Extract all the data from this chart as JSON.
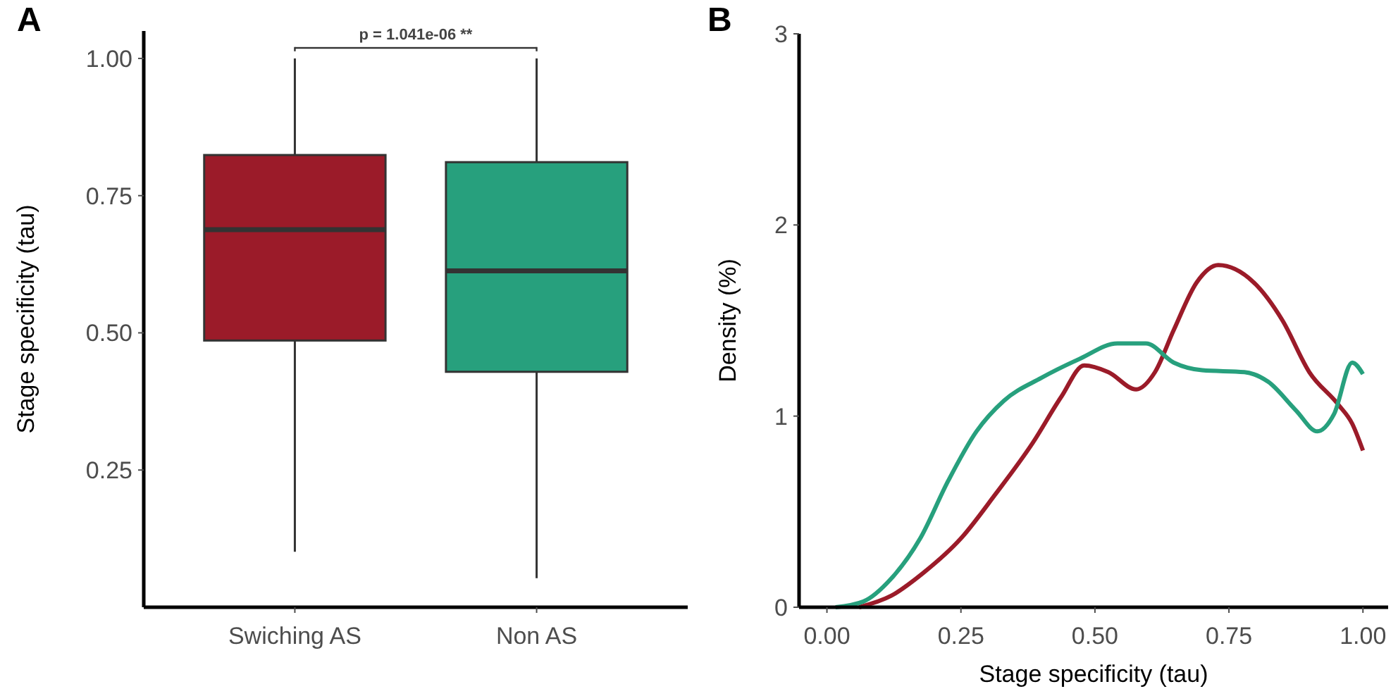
{
  "chart_data": [
    {
      "type": "box",
      "title": "A",
      "categories": [
        "Swiching AS",
        "Non AS"
      ],
      "ylabel": "Stage specificity (tau)",
      "ylim": [
        0,
        1.05
      ],
      "yticks": [
        {
          "value": 0.25,
          "label": "0.25"
        },
        {
          "value": 0.5,
          "label": "0.50"
        },
        {
          "value": 0.75,
          "label": "0.75"
        },
        {
          "value": 1,
          "label": "1.00"
        }
      ],
      "colors": [
        "#9b1b29",
        "#27a07d"
      ],
      "boxes": [
        {
          "low": 0.101,
          "q1": 0.486,
          "median": 0.688,
          "q3": 0.824,
          "high": 1.0
        },
        {
          "low": 0.053,
          "q1": 0.429,
          "median": 0.613,
          "q3": 0.811,
          "high": 1.0
        }
      ],
      "annotations": [
        "p = 1.041e-06 **"
      ]
    },
    {
      "type": "line",
      "title": "B",
      "xlabel": "Stage specificity (tau)",
      "ylabel": "Density (%)",
      "xlim": [
        -0.052,
        1.047
      ],
      "ylim": [
        0,
        3
      ],
      "xticks": [
        {
          "value": 0,
          "label": "0.00"
        },
        {
          "value": 0.25,
          "label": "0.25"
        },
        {
          "value": 0.5,
          "label": "0.50"
        },
        {
          "value": 0.75,
          "label": "0.75"
        },
        {
          "value": 1,
          "label": "1.00"
        }
      ],
      "yticks": [
        0,
        1,
        2,
        3
      ],
      "marker": "none",
      "line_style": "solid",
      "series": [
        {
          "color": "#9b1b29",
          "x": [
            0.06,
            0.12,
            0.18,
            0.25,
            0.314,
            0.384,
            0.437,
            0.48,
            0.525,
            0.577,
            0.612,
            0.647,
            0.69,
            0.73,
            0.796,
            0.85,
            0.9,
            0.954,
            0.98,
            1.0
          ],
          "values": [
            0,
            0.06,
            0.18,
            0.36,
            0.59,
            0.86,
            1.1,
            1.265,
            1.23,
            1.14,
            1.23,
            1.45,
            1.7,
            1.79,
            1.7,
            1.5,
            1.23,
            1.06,
            0.96,
            0.82
          ]
        },
        {
          "color": "#27a07d",
          "x": [
            0.016,
            0.068,
            0.12,
            0.174,
            0.226,
            0.279,
            0.33,
            0.4,
            0.472,
            0.542,
            0.595,
            0.647,
            0.7,
            0.779,
            0.823,
            0.875,
            0.915,
            0.946,
            0.98,
            1.0
          ],
          "values": [
            0,
            0.03,
            0.15,
            0.36,
            0.66,
            0.92,
            1.08,
            1.2,
            1.3,
            1.38,
            1.38,
            1.28,
            1.24,
            1.23,
            1.18,
            1.03,
            0.92,
            1.01,
            1.28,
            1.22
          ]
        }
      ]
    }
  ]
}
